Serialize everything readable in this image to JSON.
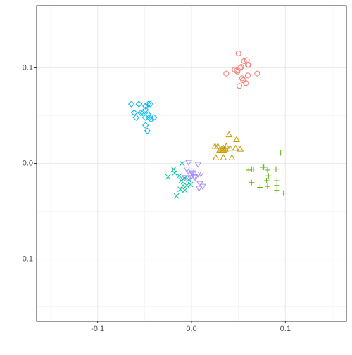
{
  "chart_data": {
    "type": "scatter",
    "xlim": [
      -0.165,
      0.165
    ],
    "ylim": [
      -0.165,
      0.165
    ],
    "xticks": [
      -0.1,
      {
        "value": 0,
        "label": "0.0"
      },
      0.1
    ],
    "yticks": [
      -0.1,
      {
        "value": 0,
        "label": "0.0"
      },
      0.1
    ],
    "xminorticks": [
      -0.15,
      -0.05,
      0.05,
      0.15
    ],
    "yminorticks": [
      -0.15,
      -0.05,
      0.05,
      0.15
    ],
    "grid": true,
    "series": [
      {
        "color": "#F8766D",
        "shape": "circle",
        "x": [
          0.05,
          0.037,
          0.046,
          0.049,
          0.052,
          0.053,
          0.056,
          0.055,
          0.059,
          0.06,
          0.06,
          0.058,
          0.061,
          0.07,
          0.048,
          0.051,
          0.054
        ],
        "values": [
          0.115,
          0.094,
          0.098,
          0.096,
          0.1,
          0.101,
          0.107,
          0.087,
          0.108,
          0.103,
          0.092,
          0.084,
          0.103,
          0.094,
          0.097,
          0.081,
          0.089
        ]
      },
      {
        "color": "#C49A00",
        "shape": "triangle",
        "x": [
          0.025,
          0.028,
          0.026,
          0.03,
          0.032,
          0.034,
          0.036,
          0.037,
          0.034,
          0.04,
          0.041,
          0.043,
          0.048,
          0.047,
          0.052,
          0.034
        ],
        "values": [
          0.018,
          0.018,
          0.006,
          0.014,
          0.015,
          0.016,
          0.015,
          0.018,
          0.006,
          0.03,
          0.016,
          0.006,
          0.025,
          0.016,
          0.015,
          0.014
        ]
      },
      {
        "color": "#53B400",
        "shape": "plus",
        "x": [
          0.061,
          0.064,
          0.066,
          0.064,
          0.073,
          0.076,
          0.077,
          0.081,
          0.082,
          0.08,
          0.081,
          0.09,
          0.091,
          0.091,
          0.091,
          0.095,
          0.098
        ],
        "values": [
          -0.007,
          -0.006,
          -0.006,
          -0.02,
          -0.025,
          -0.004,
          -0.004,
          -0.007,
          -0.013,
          -0.018,
          -0.024,
          -0.006,
          -0.018,
          -0.023,
          -0.028,
          0.011,
          -0.031
        ]
      },
      {
        "color": "#00C094",
        "shape": "cross",
        "x": [
          -0.01,
          -0.019,
          -0.025,
          -0.018,
          -0.013,
          -0.011,
          -0.007,
          -0.009,
          -0.005,
          -0.003,
          -0.001,
          -0.016,
          -0.007,
          -0.012
        ],
        "values": [
          0.0,
          -0.006,
          -0.014,
          -0.01,
          -0.013,
          -0.018,
          -0.015,
          -0.023,
          -0.023,
          -0.017,
          -0.022,
          -0.034,
          -0.028,
          -0.027
        ]
      },
      {
        "color": "#00B6EB",
        "shape": "diamond",
        "x": [
          -0.064,
          -0.056,
          -0.049,
          -0.046,
          -0.044,
          -0.049,
          -0.052,
          -0.054,
          -0.061,
          -0.059,
          -0.046,
          -0.049,
          -0.045,
          -0.04,
          -0.043,
          -0.049,
          -0.047
        ],
        "values": [
          0.062,
          0.062,
          0.06,
          0.062,
          0.062,
          0.056,
          0.053,
          0.053,
          0.053,
          0.048,
          0.051,
          0.048,
          0.048,
          0.048,
          0.046,
          0.04,
          0.034
        ]
      },
      {
        "color": "#A58AFF",
        "shape": "triangle-down",
        "x": [
          -0.003,
          0.007,
          -0.005,
          0.0,
          0.001,
          -0.001,
          0.003,
          0.007,
          0.01,
          0.004,
          0.009,
          0.012,
          0.008,
          -0.007,
          -0.001
        ],
        "values": [
          0.001,
          -0.001,
          -0.006,
          -0.008,
          -0.01,
          -0.012,
          -0.014,
          -0.011,
          -0.011,
          -0.015,
          -0.021,
          -0.024,
          -0.026,
          -0.015,
          -0.015
        ]
      }
    ]
  }
}
